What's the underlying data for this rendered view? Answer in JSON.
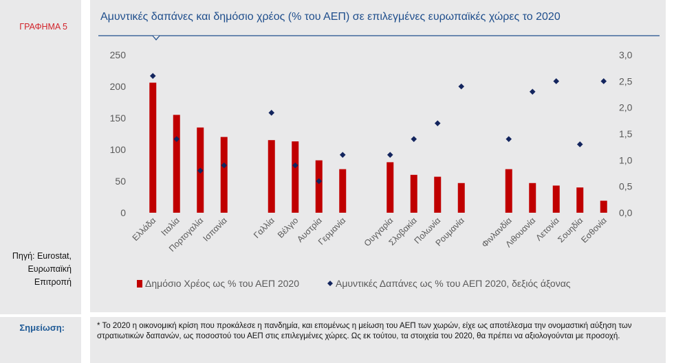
{
  "sidebar": {
    "figure_label": "ΓΡΑΦΗΜΑ 5",
    "source_lines": [
      "Πηγή: Eurostat,",
      "Ευρωπαϊκή",
      "Επιτροπή"
    ],
    "note_label": "Σημείωση:"
  },
  "note": {
    "text": "* Το 2020 η οικονομική κρίση που προκάλεσε η πανδημία, και επομένως η μείωση του ΑΕΠ των χωρών, είχε ως αποτέλεσμα την ονομαστική αύξηση των στρατιωτικών δαπανών, ως ποσοστού του ΑΕΠ στις επιλεγμένες χώρες. Ως εκ τούτου, τα στοιχεία του 2020, θα πρέπει να αξιολογούνται με προσοχή."
  },
  "colors": {
    "bar": "#c00000",
    "diamond": "#13255e",
    "title": "#1f4e8c",
    "axis_text": "#595959"
  },
  "chart_data": {
    "type": "bar",
    "title": "Αμυντικές δαπάνες και δημόσιο χρέος (% του ΑΕΠ) σε επιλεγμένες ευρωπαϊκές χώρες το 2020",
    "categories": [
      "Ελλάδα",
      "Ιταλία",
      "Πορτογαλία",
      "Ισπανία",
      "",
      "Γαλλία",
      "Βέλγιο",
      "Αυστρία",
      "Γερμανία",
      "",
      "Ουγγαρία",
      "Σλοβακία",
      "Πολωνία",
      "Ρουμανία",
      "",
      "Φινλανδία",
      "Λιθουανία",
      "Λετονία",
      "Σουηδία",
      "Εσθονία"
    ],
    "series": [
      {
        "name": "Δημόσιο Χρέος ως % του ΑΕΠ 2020",
        "type": "bar",
        "axis": "left",
        "values": [
          206,
          155,
          135,
          120,
          null,
          115,
          113,
          83,
          69,
          null,
          80,
          60,
          57,
          47,
          null,
          69,
          47,
          43,
          40,
          19
        ]
      },
      {
        "name": "Αμυντικές Δαπάνες ως % του ΑΕΠ 2020, δεξιός άξονας",
        "type": "scatter",
        "marker": "diamond",
        "axis": "right",
        "values": [
          2.6,
          1.4,
          0.8,
          0.9,
          null,
          1.9,
          0.9,
          0.6,
          1.1,
          null,
          1.1,
          1.4,
          1.7,
          2.4,
          null,
          1.4,
          2.3,
          2.5,
          1.3,
          2.5
        ]
      }
    ],
    "y_left": {
      "lim": [
        0,
        250
      ],
      "ticks": [
        "0",
        "50",
        "100",
        "150",
        "200",
        "250"
      ]
    },
    "y_right": {
      "lim": [
        0,
        3
      ],
      "ticks": [
        "0,0",
        "0,5",
        "1,0",
        "1,5",
        "2,0",
        "2,5",
        "3,0"
      ]
    },
    "grid": false,
    "legend_position": "bottom"
  }
}
